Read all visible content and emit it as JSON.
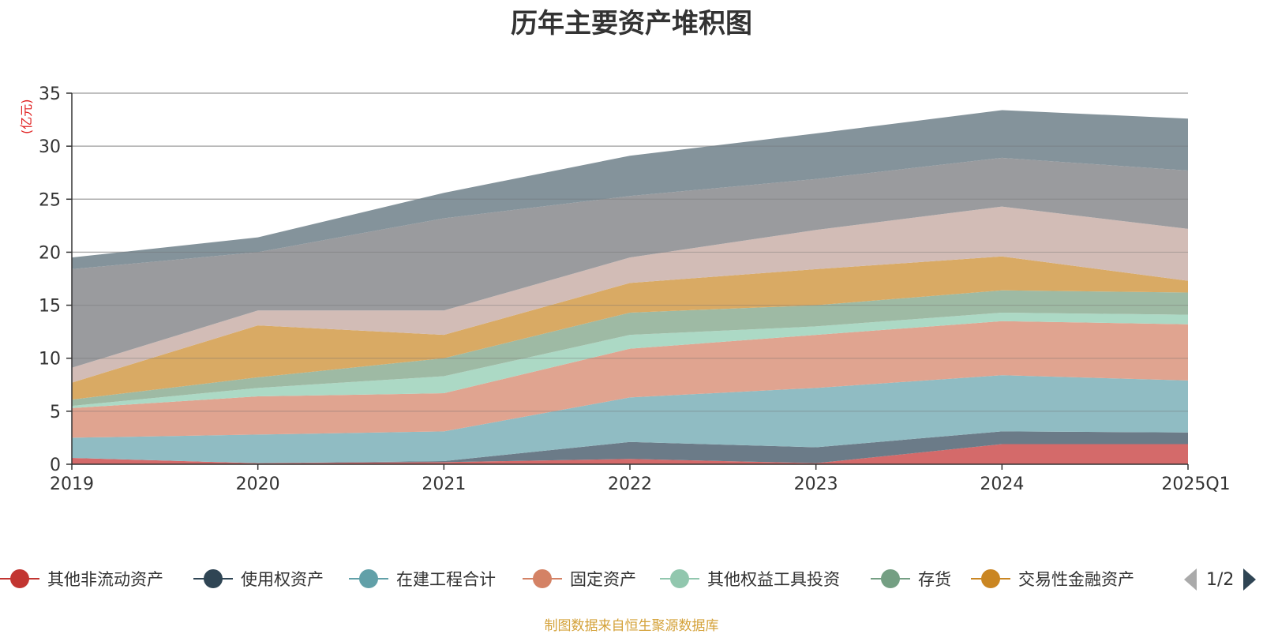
{
  "chart_data": {
    "type": "area",
    "stacked": true,
    "title": "历年主要资产堆积图",
    "unit_label": "(亿元)",
    "categories": [
      "2019",
      "2020",
      "2021",
      "2022",
      "2023",
      "2024",
      "2025Q1"
    ],
    "ylim": [
      0,
      35
    ],
    "yticks": [
      0,
      5,
      10,
      15,
      20,
      25,
      30,
      35
    ],
    "grid": true,
    "series": [
      {
        "name": "其他非流动资产",
        "color": "#d46a6a",
        "legend_color": "#c23531",
        "values": [
          0.6,
          0.1,
          0.2,
          0.5,
          0.1,
          1.9,
          1.9
        ]
      },
      {
        "name": "使用权资产",
        "color": "#6b7b88",
        "legend_color": "#2f4554",
        "values": [
          0.0,
          0.0,
          0.1,
          1.6,
          1.5,
          1.2,
          1.1
        ]
      },
      {
        "name": "在建工程合计",
        "color": "#90bcc3",
        "legend_color": "#61a0a8",
        "values": [
          1.9,
          2.7,
          2.8,
          4.2,
          5.6,
          5.3,
          4.9
        ]
      },
      {
        "name": "固定资产",
        "color": "#e0a490",
        "legend_color": "#d48265",
        "values": [
          2.8,
          3.6,
          3.6,
          4.6,
          5.0,
          5.1,
          5.3
        ]
      },
      {
        "name": "其他权益工具投资",
        "color": "#acd9c5",
        "legend_color": "#91c7ae",
        "values": [
          0.2,
          0.8,
          1.6,
          1.3,
          0.8,
          0.8,
          0.9
        ]
      },
      {
        "name": "存货",
        "color": "#9ebaa4",
        "legend_color": "#749f83",
        "values": [
          0.6,
          1.0,
          1.7,
          2.1,
          2.0,
          2.1,
          2.1
        ]
      },
      {
        "name": "交易性金融资产",
        "color": "#d9aa64",
        "legend_color": "#ca8622",
        "values": [
          1.6,
          4.9,
          2.2,
          2.8,
          3.4,
          3.2,
          1.1
        ]
      },
      {
        "name": "",
        "color": "#d2bcb6",
        "values": [
          1.4,
          1.4,
          2.3,
          2.4,
          3.7,
          4.7,
          4.9
        ]
      },
      {
        "name": "",
        "color": "#9a9b9e",
        "values": [
          9.3,
          5.5,
          8.7,
          5.8,
          4.8,
          4.6,
          5.5
        ]
      },
      {
        "name": "",
        "color": "#84939b",
        "values": [
          1.1,
          1.4,
          2.4,
          3.8,
          4.3,
          4.5,
          4.9
        ]
      }
    ]
  },
  "legend": {
    "items": [
      {
        "label": "其他非流动资产",
        "color": "#c23531"
      },
      {
        "label": "使用权资产",
        "color": "#2f4554"
      },
      {
        "label": "在建工程合计",
        "color": "#61a0a8"
      },
      {
        "label": "固定资产",
        "color": "#d48265"
      },
      {
        "label": "其他权益工具投资",
        "color": "#91c7ae"
      },
      {
        "label": "存货",
        "color": "#749f83"
      },
      {
        "label": "交易性金融资产",
        "color": "#ca8622"
      }
    ],
    "page_indicator": "1/2"
  },
  "source_note": "制图数据来自恒生聚源数据库"
}
